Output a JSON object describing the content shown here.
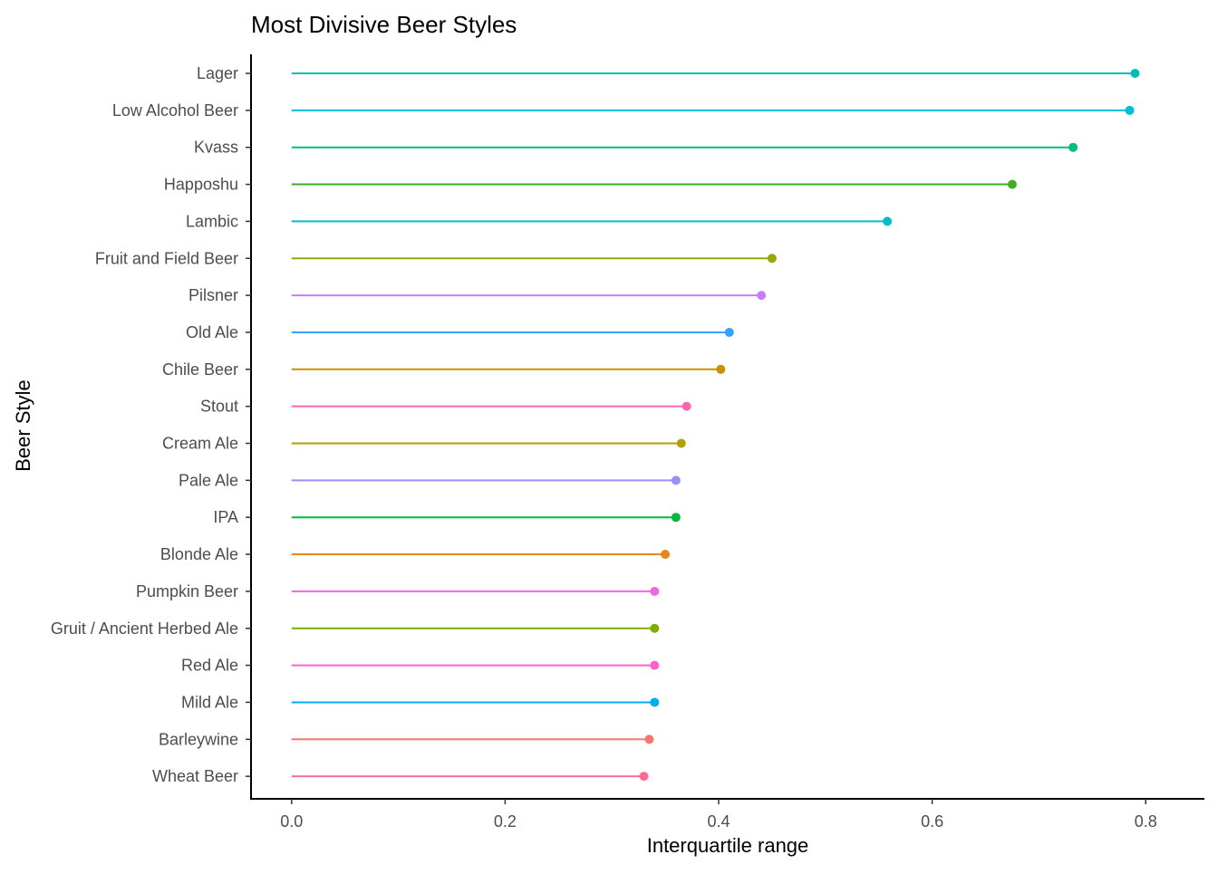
{
  "chart_data": {
    "type": "lollipop",
    "title": "Most Divisive Beer Styles",
    "xlabel": "Interquartile range",
    "ylabel": "Beer Style",
    "xlim": [
      -0.038,
      0.855
    ],
    "x_ticks": [
      0.0,
      0.2,
      0.4,
      0.6,
      0.8
    ],
    "x_tick_labels": [
      "0.0",
      "0.2",
      "0.4",
      "0.6",
      "0.8"
    ],
    "grid": false,
    "legend": "none",
    "categories": [
      "Lager",
      "Low Alcohol Beer",
      "Kvass",
      "Happoshu",
      "Lambic",
      "Fruit and Field Beer",
      "Pilsner",
      "Old Ale",
      "Chile Beer",
      "Stout",
      "Cream Ale",
      "Pale Ale",
      "IPA",
      "Blonde Ale",
      "Pumpkin Beer",
      "Gruit / Ancient Herbed Ale",
      "Red Ale",
      "Mild Ale",
      "Barleywine",
      "Wheat Beer"
    ],
    "values": [
      0.79,
      0.785,
      0.732,
      0.675,
      0.558,
      0.45,
      0.44,
      0.41,
      0.402,
      0.37,
      0.365,
      0.36,
      0.36,
      0.35,
      0.34,
      0.34,
      0.34,
      0.34,
      0.335,
      0.33
    ],
    "colors": [
      "#00BFB2",
      "#00BCD6",
      "#00BD80",
      "#3FAF1E",
      "#00BDC8",
      "#99A800",
      "#C77CFF",
      "#35A2FF",
      "#C89100",
      "#FF65AE",
      "#B59F00",
      "#9590FF",
      "#00B941",
      "#E7851E",
      "#F067E3",
      "#7CAE00",
      "#FF61C9",
      "#00ADEF",
      "#F8766D",
      "#FF6C91"
    ]
  }
}
